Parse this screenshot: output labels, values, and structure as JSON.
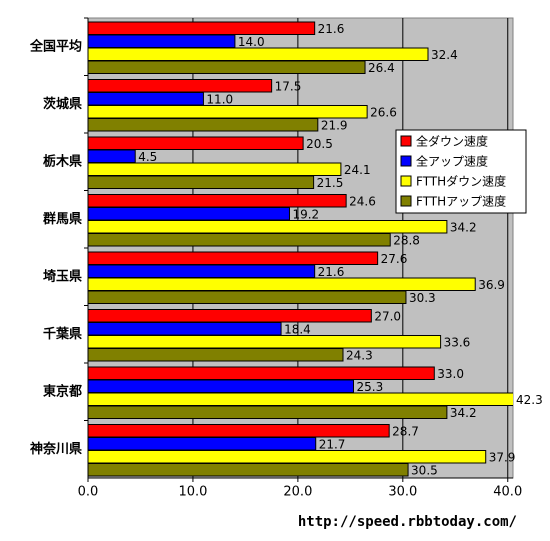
{
  "chart_data": {
    "type": "hbar",
    "categories": [
      "全国平均",
      "茨城県",
      "栃木県",
      "群馬県",
      "埼玉県",
      "千葉県",
      "東京都",
      "神奈川県"
    ],
    "series": [
      {
        "name": "全ダウン速度",
        "color": "#ff0000",
        "values": [
          21.6,
          17.5,
          20.5,
          24.6,
          27.6,
          27.0,
          33.0,
          28.7
        ],
        "value_labels": [
          "21.6",
          "17.5",
          "20.5",
          "24.6",
          "27.6",
          "27.0",
          "33.0",
          "28.7"
        ]
      },
      {
        "name": "全アップ速度",
        "color": "#0000ff",
        "values": [
          14.0,
          11.0,
          4.5,
          19.2,
          21.6,
          18.4,
          25.3,
          21.7
        ],
        "value_labels": [
          "14.0",
          "11.0",
          "4.5",
          "19.2",
          "21.6",
          "18.4",
          "25.3",
          "21.7"
        ]
      },
      {
        "name": "FTTHダウン速度",
        "color": "#ffff00",
        "values": [
          32.4,
          26.6,
          24.1,
          34.2,
          36.9,
          33.6,
          42.3,
          37.9
        ],
        "value_labels": [
          "32.4",
          "26.6",
          "24.1",
          "34.2",
          "36.9",
          "33.6",
          "42.3",
          "37.9"
        ]
      },
      {
        "name": "FTTHアップ速度",
        "color": "#808000",
        "values": [
          26.4,
          21.9,
          21.5,
          28.8,
          30.3,
          24.3,
          34.2,
          30.5
        ],
        "value_labels": [
          "26.4",
          "21.9",
          "21.5",
          "28.8",
          "30.3",
          "24.3",
          "34.2",
          "30.5"
        ]
      }
    ],
    "xlim": [
      0,
      40.5
    ],
    "xticks": [
      {
        "value": 0,
        "label": "0.0"
      },
      {
        "value": 10,
        "label": "10.0"
      },
      {
        "value": 20,
        "label": "20.0"
      },
      {
        "value": 30,
        "label": "30.0"
      },
      {
        "value": 40,
        "label": "40.0"
      }
    ],
    "grid": true,
    "legend": "right",
    "background": "#c0c0c0",
    "source": "http://speed.rbbtoday.com/"
  }
}
